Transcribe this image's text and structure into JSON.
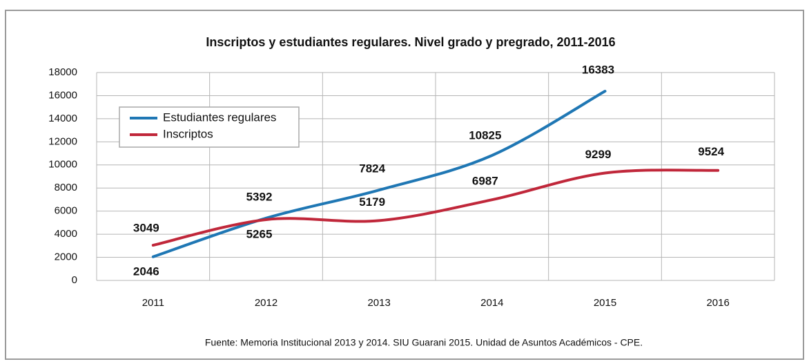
{
  "chart_data": {
    "type": "line",
    "title": "Inscriptos y estudiantes regulares. Nivel grado y pregrado, 2011-2016",
    "categories": [
      "2011",
      "2012",
      "2013",
      "2014",
      "2015",
      "2016"
    ],
    "series": [
      {
        "name": "Estudiantes regulares",
        "color": "#1f77b4",
        "values": [
          2046,
          5392,
          7824,
          10825,
          16383,
          null
        ]
      },
      {
        "name": "Inscriptos",
        "color": "#c0273a",
        "values": [
          3049,
          5265,
          5179,
          6987,
          9299,
          9524
        ]
      }
    ],
    "ylim": [
      0,
      18000
    ],
    "yticks": [
      0,
      2000,
      4000,
      6000,
      8000,
      10000,
      12000,
      14000,
      16000,
      18000
    ],
    "grid": true,
    "legend": "upper left",
    "source": "Fuente: Memoria Institucional 2013 y 2014. SIU Guarani 2015. Unidad de Asuntos Académicos - CPE."
  }
}
